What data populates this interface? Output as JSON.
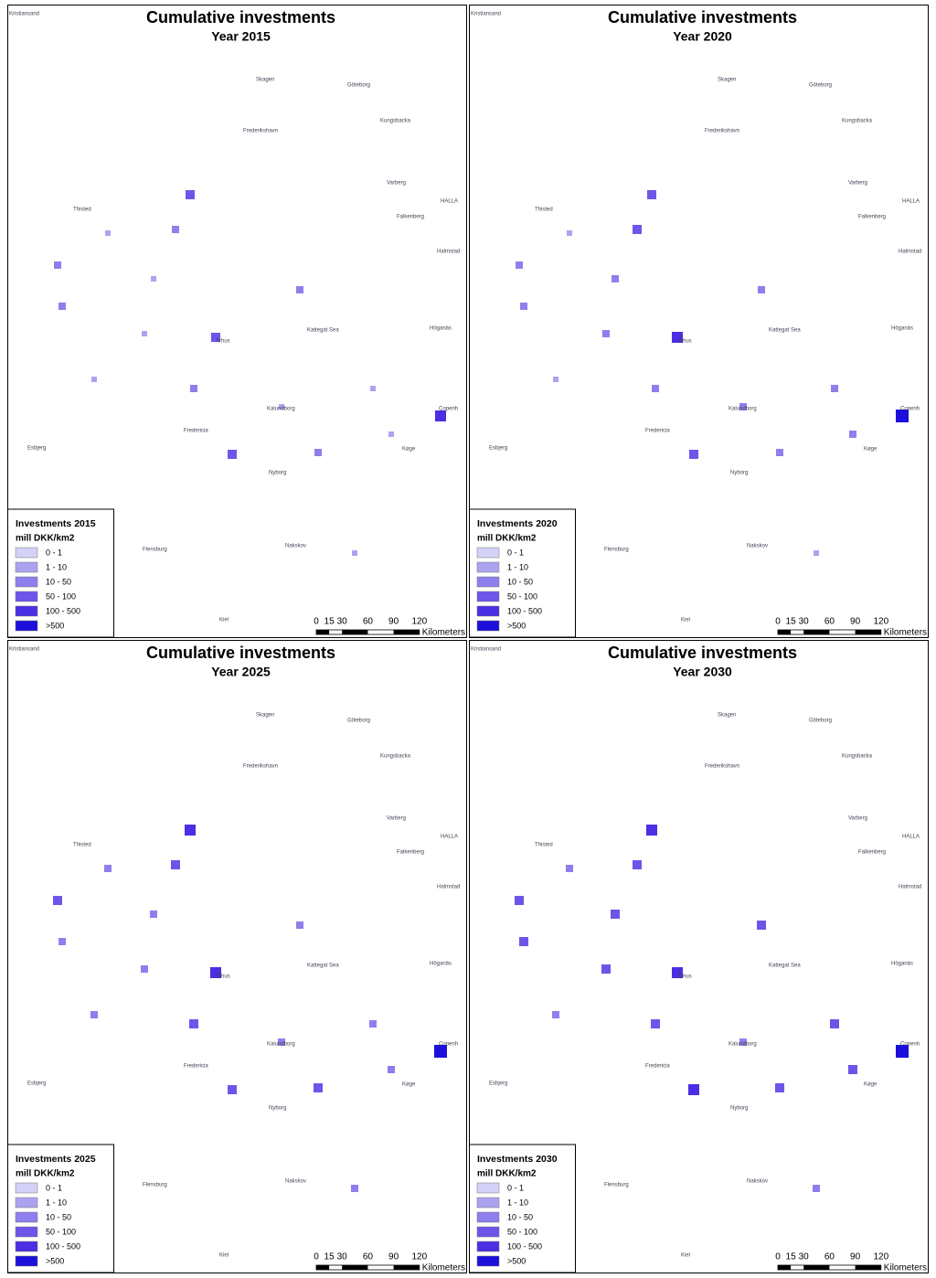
{
  "panels": [
    {
      "title": "Cumulative investments",
      "subtitle": "Year 2015",
      "legend": {
        "title": "Investments 2015",
        "unit": "mill DKK/km2",
        "items": [
          {
            "label": "0 - 1",
            "color": "#d3d1f8"
          },
          {
            "label": "1 - 10",
            "color": "#aba3f0"
          },
          {
            "label": "10 - 50",
            "color": "#8e7fee"
          },
          {
            "label": "50 - 100",
            "color": "#6d55ea"
          },
          {
            "label": "100 - 500",
            "color": "#4a2fe4"
          },
          {
            "label": ">500",
            "color": "#1c0fdc"
          }
        ]
      }
    },
    {
      "title": "Cumulative investments",
      "subtitle": "Year 2020",
      "legend": {
        "title": "Investments 2020",
        "unit": "mill DKK/km2",
        "items": [
          {
            "label": "0 - 1",
            "color": "#d3d1f8"
          },
          {
            "label": "1 - 10",
            "color": "#aba3f0"
          },
          {
            "label": "10 - 50",
            "color": "#8e7fee"
          },
          {
            "label": "50 - 100",
            "color": "#6d55ea"
          },
          {
            "label": "100 - 500",
            "color": "#4a2fe4"
          },
          {
            "label": ">500",
            "color": "#1c0fdc"
          }
        ]
      }
    },
    {
      "title": "Cumulative investments",
      "subtitle": "Year 2025",
      "legend": {
        "title": "Investments 2025",
        "unit": "mill DKK/km2",
        "items": [
          {
            "label": "0 - 1",
            "color": "#d3d1f8"
          },
          {
            "label": "1 - 10",
            "color": "#aba3f0"
          },
          {
            "label": "10 - 50",
            "color": "#8e7fee"
          },
          {
            "label": "50 - 100",
            "color": "#6d55ea"
          },
          {
            "label": "100 - 500",
            "color": "#4a2fe4"
          },
          {
            "label": ">500",
            "color": "#1c0fdc"
          }
        ]
      }
    },
    {
      "title": "Cumulative investments",
      "subtitle": "Year 2030",
      "legend": {
        "title": "Investments 2030",
        "unit": "mill DKK/km2",
        "items": [
          {
            "label": "0 - 1",
            "color": "#d3d1f8"
          },
          {
            "label": "1 - 10",
            "color": "#aba3f0"
          },
          {
            "label": "10 - 50",
            "color": "#8e7fee"
          },
          {
            "label": "50 - 100",
            "color": "#6d55ea"
          },
          {
            "label": "100 - 500",
            "color": "#4a2fe4"
          },
          {
            "label": ">500",
            "color": "#1c0fdc"
          }
        ]
      }
    }
  ],
  "scale_bar": {
    "labels": [
      "0",
      "15",
      "30",
      "60",
      "90",
      "120"
    ],
    "unit": "Kilometers"
  },
  "place_labels": [
    "Kristiansand",
    "Skagen",
    "Göteborg",
    "Kungsbacka",
    "Frederikshavn",
    "Varberg",
    "HALLA",
    "Falkenberg",
    "Halmstad",
    "Thisted",
    "Århus",
    "Kattegat Sea",
    "Höganäs",
    "Fredericia",
    "Esbjerg",
    "Kalundborg",
    "Nyborg",
    "Køge",
    "Copenh",
    "Flensburg",
    "Nakskov",
    "Kiel"
  ]
}
